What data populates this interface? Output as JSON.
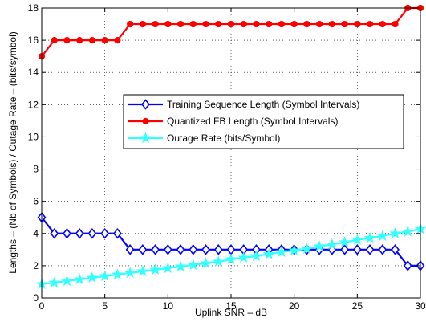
{
  "chart_data": {
    "type": "line",
    "xlabel": "Uplink SNR – dB",
    "ylabel": "Lengths – (Nb of Symbols) / Outage Rate – (bits/symbol)",
    "xlim": [
      0,
      30
    ],
    "ylim": [
      0,
      18
    ],
    "xticks": [
      0,
      5,
      10,
      15,
      20,
      25,
      30
    ],
    "yticks": [
      0,
      2,
      4,
      6,
      8,
      10,
      12,
      14,
      16,
      18
    ],
    "grid": true,
    "legend_position": "center-right",
    "x": [
      0,
      1,
      2,
      3,
      4,
      5,
      6,
      7,
      8,
      9,
      10,
      11,
      12,
      13,
      14,
      15,
      16,
      17,
      18,
      19,
      20,
      21,
      22,
      23,
      24,
      25,
      26,
      27,
      28,
      29,
      30
    ],
    "series": [
      {
        "name": "Training Sequence Length (Symbol Intervals)",
        "color": "#0000ff",
        "marker": "diamond",
        "values": [
          5,
          4,
          4,
          4,
          4,
          4,
          4,
          3,
          3,
          3,
          3,
          3,
          3,
          3,
          3,
          3,
          3,
          3,
          3,
          3,
          3,
          3,
          3,
          3,
          3,
          3,
          3,
          3,
          3,
          2,
          2
        ]
      },
      {
        "name": "Quantized FB Length (Symbol Intervals)",
        "color": "#ff0000",
        "marker": "circle",
        "values": [
          15,
          16,
          16,
          16,
          16,
          16,
          16,
          17,
          17,
          17,
          17,
          17,
          17,
          17,
          17,
          17,
          17,
          17,
          17,
          17,
          17,
          17,
          17,
          17,
          17,
          17,
          17,
          17,
          17,
          18,
          18
        ]
      },
      {
        "name": "Outage Rate (bits/Symbol)",
        "color": "#33ffff",
        "marker": "star",
        "values": [
          0.85,
          0.95,
          1.05,
          1.15,
          1.25,
          1.35,
          1.45,
          1.55,
          1.65,
          1.75,
          1.85,
          1.95,
          2.05,
          2.15,
          2.25,
          2.4,
          2.5,
          2.6,
          2.72,
          2.85,
          2.95,
          3.05,
          3.2,
          3.32,
          3.45,
          3.6,
          3.72,
          3.85,
          4.0,
          4.12,
          4.28
        ]
      }
    ]
  }
}
